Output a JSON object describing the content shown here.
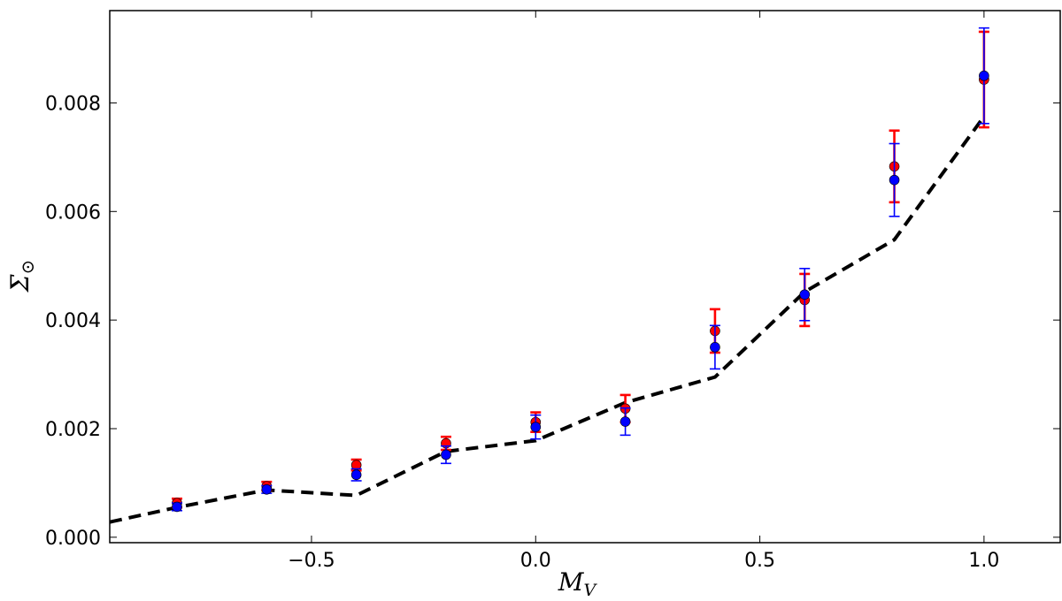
{
  "chart_data": {
    "type": "scatter",
    "title": "",
    "xlabel": "M",
    "xlabel_sub": "V",
    "ylabel": "Σ",
    "ylabel_sub": "⊙",
    "xlim": [
      -0.95,
      1.17
    ],
    "ylim": [
      -0.0001,
      0.0097
    ],
    "xticks": [
      -0.5,
      0.0,
      0.5,
      1.0
    ],
    "xtick_labels": [
      "−0.5",
      "0.0",
      "0.5",
      "1.0"
    ],
    "yticks": [
      0.0,
      0.002,
      0.004,
      0.006,
      0.008
    ],
    "ytick_labels": [
      "0.000",
      "0.002",
      "0.004",
      "0.006",
      "0.008"
    ],
    "grid": false,
    "legend": "none",
    "line": {
      "style": "dashed",
      "color": "#000000",
      "x": [
        -0.95,
        -0.8,
        -0.6,
        -0.4,
        -0.2,
        0.0,
        0.2,
        0.4,
        0.6,
        0.8,
        1.0
      ],
      "y": [
        0.00028,
        0.00055,
        0.00087,
        0.00077,
        0.00158,
        0.00178,
        0.00248,
        0.00295,
        0.00452,
        0.00548,
        0.00775
      ]
    },
    "series": [
      {
        "color": "#ff0000",
        "x": [
          -0.8,
          -0.6,
          -0.4,
          -0.2,
          0.0,
          0.2,
          0.4,
          0.6,
          0.8,
          1.0
        ],
        "y": [
          0.00063,
          0.00094,
          0.00133,
          0.00173,
          0.00212,
          0.00237,
          0.0038,
          0.00437,
          0.00683,
          0.00843
        ],
        "err": [
          8e-05,
          8e-05,
          0.0001,
          0.00012,
          0.00018,
          0.00025,
          0.0004,
          0.00048,
          0.00066,
          0.00088
        ]
      },
      {
        "color": "#0000ff",
        "x": [
          -0.8,
          -0.6,
          -0.4,
          -0.2,
          0.0,
          0.2,
          0.4,
          0.6,
          0.8,
          1.0
        ],
        "y": [
          0.00056,
          0.00088,
          0.00115,
          0.00152,
          0.00203,
          0.00213,
          0.0035,
          0.00447,
          0.00658,
          0.0085
        ],
        "err": [
          7e-05,
          7e-05,
          0.00011,
          0.00016,
          0.00022,
          0.00025,
          0.0004,
          0.00048,
          0.00067,
          0.00088
        ]
      }
    ]
  }
}
